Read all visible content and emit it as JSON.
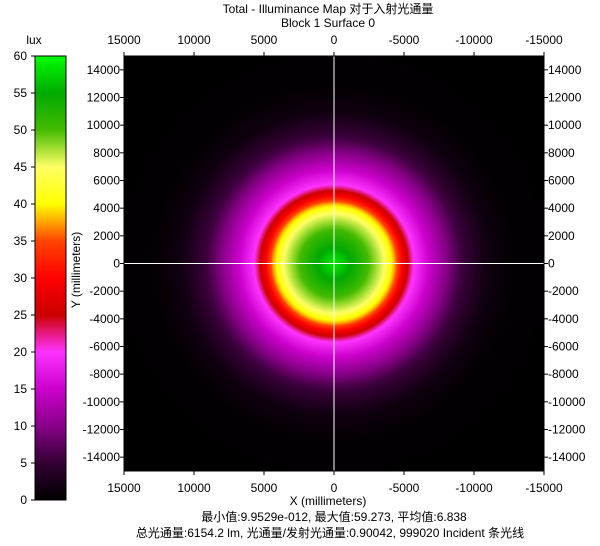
{
  "chart_data": {
    "type": "heatmap",
    "title": "Total - Illuminance Map 对于入射光通量",
    "subtitle": "Block 1 Surface 0",
    "xlabel": "X (millimeters)",
    "ylabel": "Y (millimeters)",
    "colorbar": {
      "label": "lux",
      "range": [
        0,
        60
      ],
      "ticks": [
        0,
        5,
        10,
        15,
        20,
        25,
        30,
        35,
        40,
        45,
        50,
        55,
        60
      ],
      "tick_labels": [
        "0",
        "5",
        "10",
        "15",
        "20",
        "25",
        "30",
        "35",
        "40",
        "45",
        "50",
        "55",
        "60"
      ],
      "colors": [
        "#000000",
        "#330033",
        "#880088",
        "#cc00cc",
        "#ff33ff",
        "#cc0000",
        "#ff0000",
        "#ff4400",
        "#ffff00",
        "#ffff66",
        "#44bb00",
        "#00aa00",
        "#00ff00"
      ]
    },
    "xlim": [
      15000,
      -15000
    ],
    "ylim": [
      -15000,
      15000
    ],
    "x_ticks": [
      15000,
      10000,
      5000,
      0,
      -5000,
      -10000,
      -15000
    ],
    "x_tick_labels": [
      "15000",
      "10000",
      "5000",
      "0",
      "-5000",
      "-10000",
      "-15000"
    ],
    "y_ticks": [
      14000,
      12000,
      10000,
      8000,
      6000,
      4000,
      2000,
      0,
      -2000,
      -4000,
      -6000,
      -8000,
      -10000,
      -12000,
      -14000
    ],
    "y_tick_labels": [
      "14000",
      "12000",
      "10000",
      "8000",
      "6000",
      "4000",
      "2000",
      "0",
      "-2000",
      "-4000",
      "-6000",
      "-8000",
      "-10000",
      "-12000",
      "-14000"
    ],
    "distribution": {
      "peak_lux": 59.273,
      "center": [
        0,
        0
      ],
      "radial_profile": [
        {
          "r": 0,
          "lux": 59
        },
        {
          "r": 2000,
          "lux": 52
        },
        {
          "r": 3600,
          "lux": 45
        },
        {
          "r": 4300,
          "lux": 38
        },
        {
          "r": 5000,
          "lux": 28
        },
        {
          "r": 5700,
          "lux": 20
        },
        {
          "r": 7000,
          "lux": 14
        },
        {
          "r": 9000,
          "lux": 6
        },
        {
          "r": 11000,
          "lux": 1.5
        },
        {
          "r": 13000,
          "lux": 0.2
        },
        {
          "r": 21000,
          "lux": 0
        }
      ]
    },
    "grid": false,
    "crosshair_at_origin": true
  },
  "stats": {
    "line1": "最小值:9.9529e-012, 最大值:59.273, 平均值:6.838",
    "line2": "总光通量:6154.2 lm, 光通量/发射光通量:0.90042, 999020 Incident 条光线"
  }
}
